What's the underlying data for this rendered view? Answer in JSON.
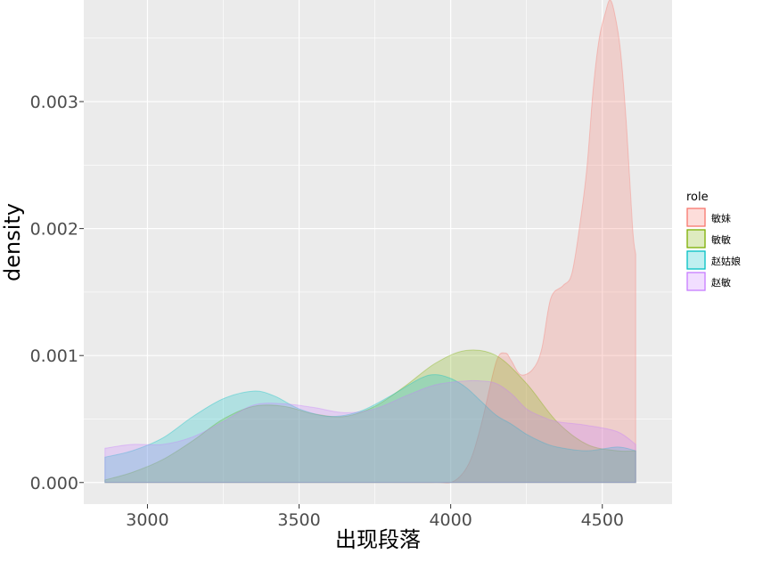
{
  "chart_data": {
    "type": "area",
    "chart_subtype": "density",
    "xlabel": "出现段落",
    "ylabel": "density",
    "xlim": [
      2790,
      4730
    ],
    "ylim": [
      -0.00017,
      0.0038
    ],
    "x_ticks": [
      3000,
      3500,
      4000,
      4500
    ],
    "x_tick_labels": [
      "3000",
      "3500",
      "4000",
      "4500"
    ],
    "y_ticks": [
      0.0,
      0.001,
      0.002,
      0.003
    ],
    "y_tick_labels": [
      "0.000",
      "0.001",
      "0.002",
      "0.003"
    ],
    "grid": true,
    "panel_background": "#ebebeb",
    "legend": {
      "title": "role",
      "position": "right"
    },
    "series": [
      {
        "name": "敏妹",
        "color": "#F8766D",
        "x": [
          2860,
          3800,
          3950,
          4010,
          4060,
          4100,
          4150,
          4180,
          4200,
          4230,
          4270,
          4300,
          4330,
          4370,
          4400,
          4430,
          4450,
          4470,
          4490,
          4510,
          4525,
          4540,
          4560,
          4580,
          4600,
          4610
        ],
        "y": [
          0,
          0,
          0,
          1e-05,
          0.00015,
          0.00045,
          0.00095,
          0.00102,
          0.00096,
          0.00085,
          0.00089,
          0.00105,
          0.00145,
          0.00155,
          0.00165,
          0.0021,
          0.0025,
          0.0031,
          0.0035,
          0.0037,
          0.0038,
          0.0037,
          0.0034,
          0.0028,
          0.002,
          0.0018
        ]
      },
      {
        "name": "敏敏",
        "color": "#7CAE00",
        "x": [
          2860,
          2950,
          3050,
          3150,
          3250,
          3350,
          3450,
          3550,
          3650,
          3750,
          3850,
          3950,
          4050,
          4150,
          4250,
          4350,
          4450,
          4550,
          4610
        ],
        "y": [
          2e-05,
          8e-05,
          0.00018,
          0.00033,
          0.0005,
          0.0006,
          0.0006,
          0.00054,
          0.00052,
          0.0006,
          0.00076,
          0.00094,
          0.00104,
          0.001,
          0.00078,
          0.00048,
          0.0003,
          0.00025,
          0.00025
        ]
      },
      {
        "name": "赵姑娘",
        "color": "#00BFC4",
        "x": [
          2860,
          2950,
          3050,
          3150,
          3250,
          3350,
          3420,
          3500,
          3600,
          3700,
          3800,
          3900,
          3950,
          4000,
          4050,
          4100,
          4150,
          4200,
          4250,
          4300,
          4350,
          4450,
          4550,
          4610
        ],
        "y": [
          0.0002,
          0.00025,
          0.00035,
          0.00052,
          0.00066,
          0.00072,
          0.00068,
          0.00058,
          0.00052,
          0.00056,
          0.00068,
          0.00082,
          0.00085,
          0.00082,
          0.00075,
          0.00064,
          0.00053,
          0.00046,
          0.00038,
          0.00032,
          0.00028,
          0.00025,
          0.00028,
          0.00025
        ]
      },
      {
        "name": "赵敏",
        "color": "#C77CFF",
        "x": [
          2860,
          2950,
          3050,
          3150,
          3250,
          3350,
          3450,
          3550,
          3650,
          3750,
          3850,
          3950,
          4050,
          4100,
          4150,
          4200,
          4250,
          4300,
          4350,
          4450,
          4550,
          4610
        ],
        "y": [
          0.00027,
          0.0003,
          0.0003,
          0.00036,
          0.00048,
          0.00061,
          0.00062,
          0.00059,
          0.00055,
          0.00058,
          0.00068,
          0.00077,
          0.0008,
          0.0008,
          0.00078,
          0.0007,
          0.00058,
          0.00052,
          0.00048,
          0.00045,
          0.0004,
          0.0003
        ]
      }
    ]
  }
}
